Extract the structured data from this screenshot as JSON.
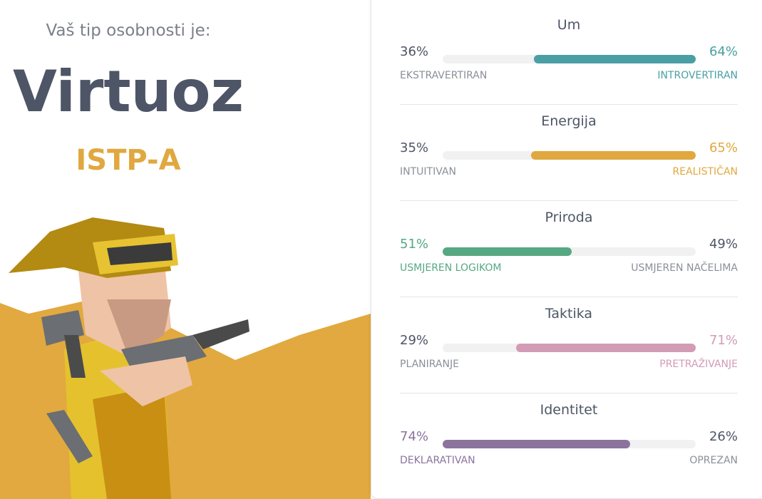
{
  "header": {
    "intro": "Vaš tip osobnosti je:",
    "type_name": "Virtuoz",
    "type_code": "ISTP-A"
  },
  "traits": [
    {
      "title": "Um",
      "color": "#4a9fa5",
      "left": {
        "value": 36,
        "label": "36%",
        "name": "EKSTRAVERTIRAN"
      },
      "right": {
        "value": 64,
        "label": "64%",
        "name": "INTROVERTIRAN"
      }
    },
    {
      "title": "Energija",
      "color": "#e0a83f",
      "left": {
        "value": 35,
        "label": "35%",
        "name": "INTUITIVAN"
      },
      "right": {
        "value": 65,
        "label": "65%",
        "name": "REALISTIČAN"
      }
    },
    {
      "title": "Priroda",
      "color": "#56a883",
      "left": {
        "value": 51,
        "label": "51%",
        "name": "USMJEREN LOGIKOM"
      },
      "right": {
        "value": 49,
        "label": "49%",
        "name": "USMJEREN NAČELIMA"
      }
    },
    {
      "title": "Taktika",
      "color": "#d29bb6",
      "left": {
        "value": 29,
        "label": "29%",
        "name": "PLANIRANJE"
      },
      "right": {
        "value": 71,
        "label": "71%",
        "name": "PRETRAŽIVANJE"
      }
    },
    {
      "title": "Identitet",
      "color": "#8c739d",
      "left": {
        "value": 74,
        "label": "74%",
        "name": "DEKLARATIVAN"
      },
      "right": {
        "value": 26,
        "label": "26%",
        "name": "OPREZAN"
      }
    }
  ]
}
